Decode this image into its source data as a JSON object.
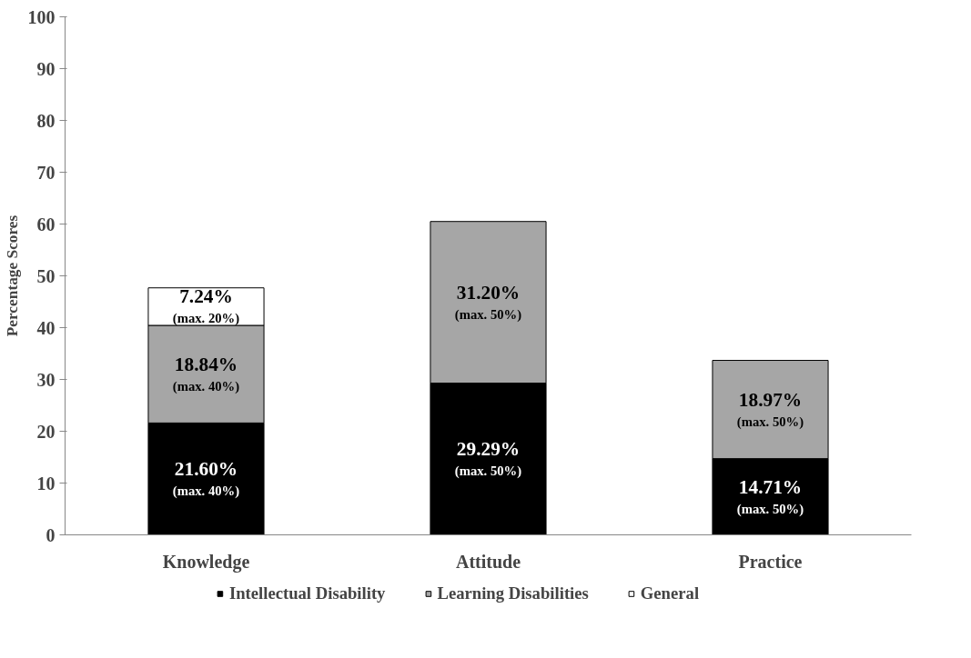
{
  "chart_data": {
    "type": "bar",
    "stacked": true,
    "ylabel": "Percentage Scores",
    "categories": [
      "Knowledge",
      "Attitude",
      "Practice"
    ],
    "series": [
      {
        "name": "Intellectual Disability",
        "color": "#000000",
        "values": [
          21.6,
          29.29,
          14.71
        ],
        "value_labels": [
          "21.60%\n(max. 40%)",
          "29.29%\n(max. 50%)",
          "14.71%\n(max. 50%)"
        ]
      },
      {
        "name": "Learning Disabilities",
        "color": "#a6a6a6",
        "values": [
          18.84,
          31.2,
          18.97
        ],
        "value_labels": [
          "18.84%\n(max. 40%)",
          "31.20%\n(max. 50%)",
          "18.97%\n(max. 50%)"
        ]
      },
      {
        "name": "General",
        "color": "#ffffff",
        "values": [
          7.24,
          null,
          null
        ],
        "value_labels": [
          "7.24%\n(max. 20%)",
          null,
          null
        ]
      }
    ],
    "ylim": [
      0,
      100
    ],
    "yticks": [
      0,
      10,
      20,
      30,
      40,
      50,
      60,
      70,
      80,
      90,
      100
    ],
    "grid": false,
    "legend": "bottom"
  }
}
